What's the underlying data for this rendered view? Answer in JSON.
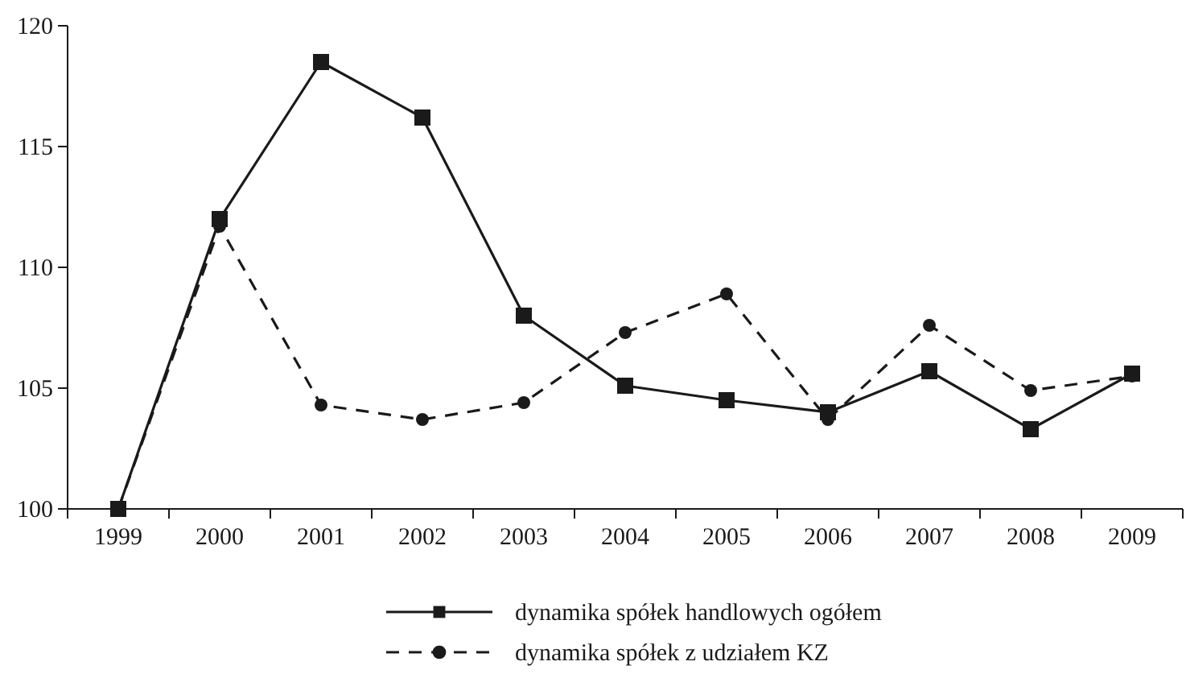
{
  "chart_data": {
    "type": "line",
    "categories": [
      "1999",
      "2000",
      "2001",
      "2002",
      "2003",
      "2004",
      "2005",
      "2006",
      "2007",
      "2008",
      "2009"
    ],
    "ylim": [
      100,
      120
    ],
    "yticks": [
      100,
      105,
      110,
      115,
      120
    ],
    "grid": false,
    "legend": "bottom",
    "series": [
      {
        "name": "dynamika spółek handlowych ogółem",
        "color": "#1a1a1a",
        "marker": "square",
        "line_style": "solid",
        "values": [
          100,
          112.0,
          118.5,
          116.2,
          108.0,
          105.1,
          104.5,
          104.0,
          105.7,
          103.3,
          105.6
        ]
      },
      {
        "name": "dynamika spółek z udziałem KZ",
        "color": "#1a1a1a",
        "marker": "circle",
        "line_style": "dashed",
        "values": [
          100,
          111.7,
          104.3,
          103.7,
          104.4,
          107.3,
          108.9,
          103.7,
          107.6,
          104.9,
          105.5
        ]
      }
    ]
  }
}
